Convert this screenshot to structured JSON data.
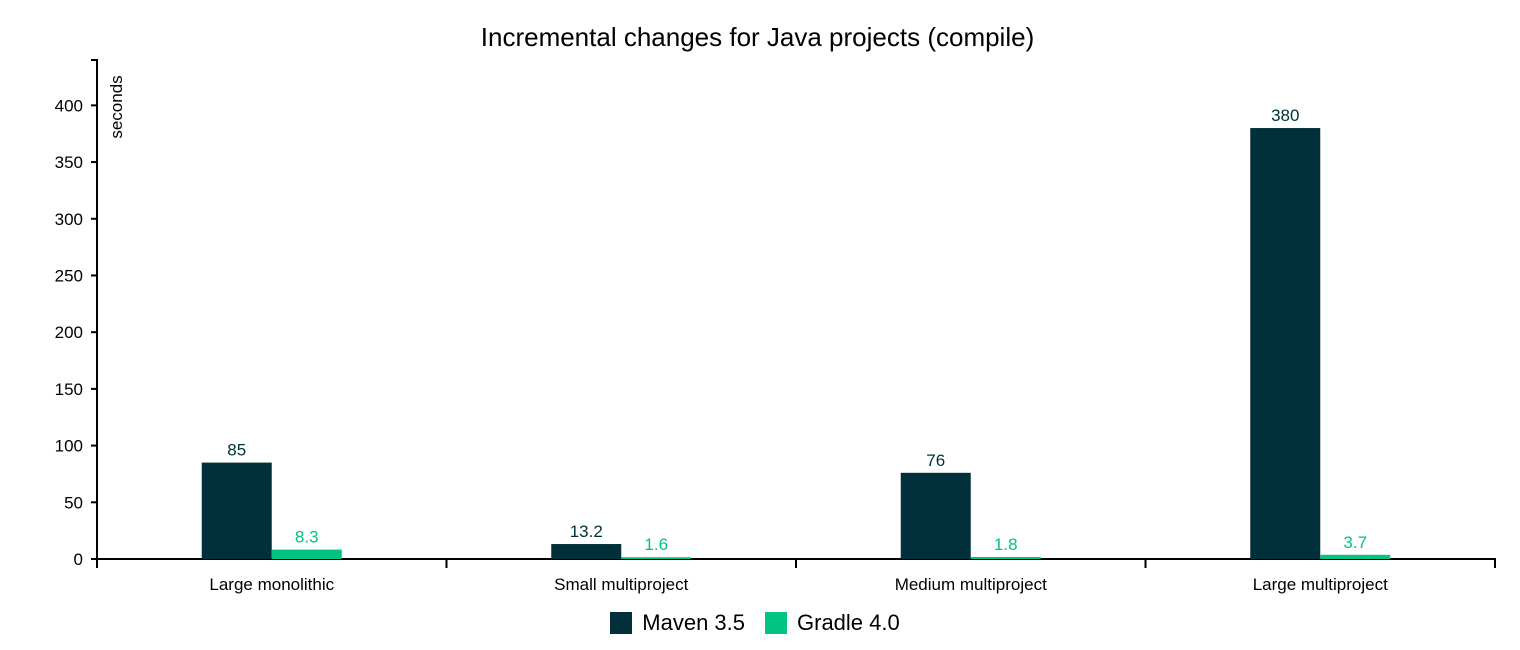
{
  "chart_data": {
    "type": "bar",
    "title": "Incremental changes for Java projects (compile)",
    "ylabel": "seconds",
    "xlabel": "",
    "ylim": [
      0,
      440
    ],
    "yticks": [
      0,
      50,
      100,
      150,
      200,
      250,
      300,
      350,
      400
    ],
    "categories": [
      "Large monolithic",
      "Small multiproject",
      "Medium multiproject",
      "Large multiproject"
    ],
    "series": [
      {
        "name": "Maven 3.5",
        "color": "#02303a",
        "values": [
          85,
          13.2,
          76,
          380
        ],
        "labels": [
          "85",
          "13.2",
          "76",
          "380"
        ]
      },
      {
        "name": "Gradle 4.0",
        "color": "#02c482",
        "values": [
          8.3,
          1.6,
          1.8,
          3.7
        ],
        "labels": [
          "8.3",
          "1.6",
          "1.8",
          "3.7"
        ]
      }
    ],
    "legend_position": "bottom",
    "grid": false
  }
}
